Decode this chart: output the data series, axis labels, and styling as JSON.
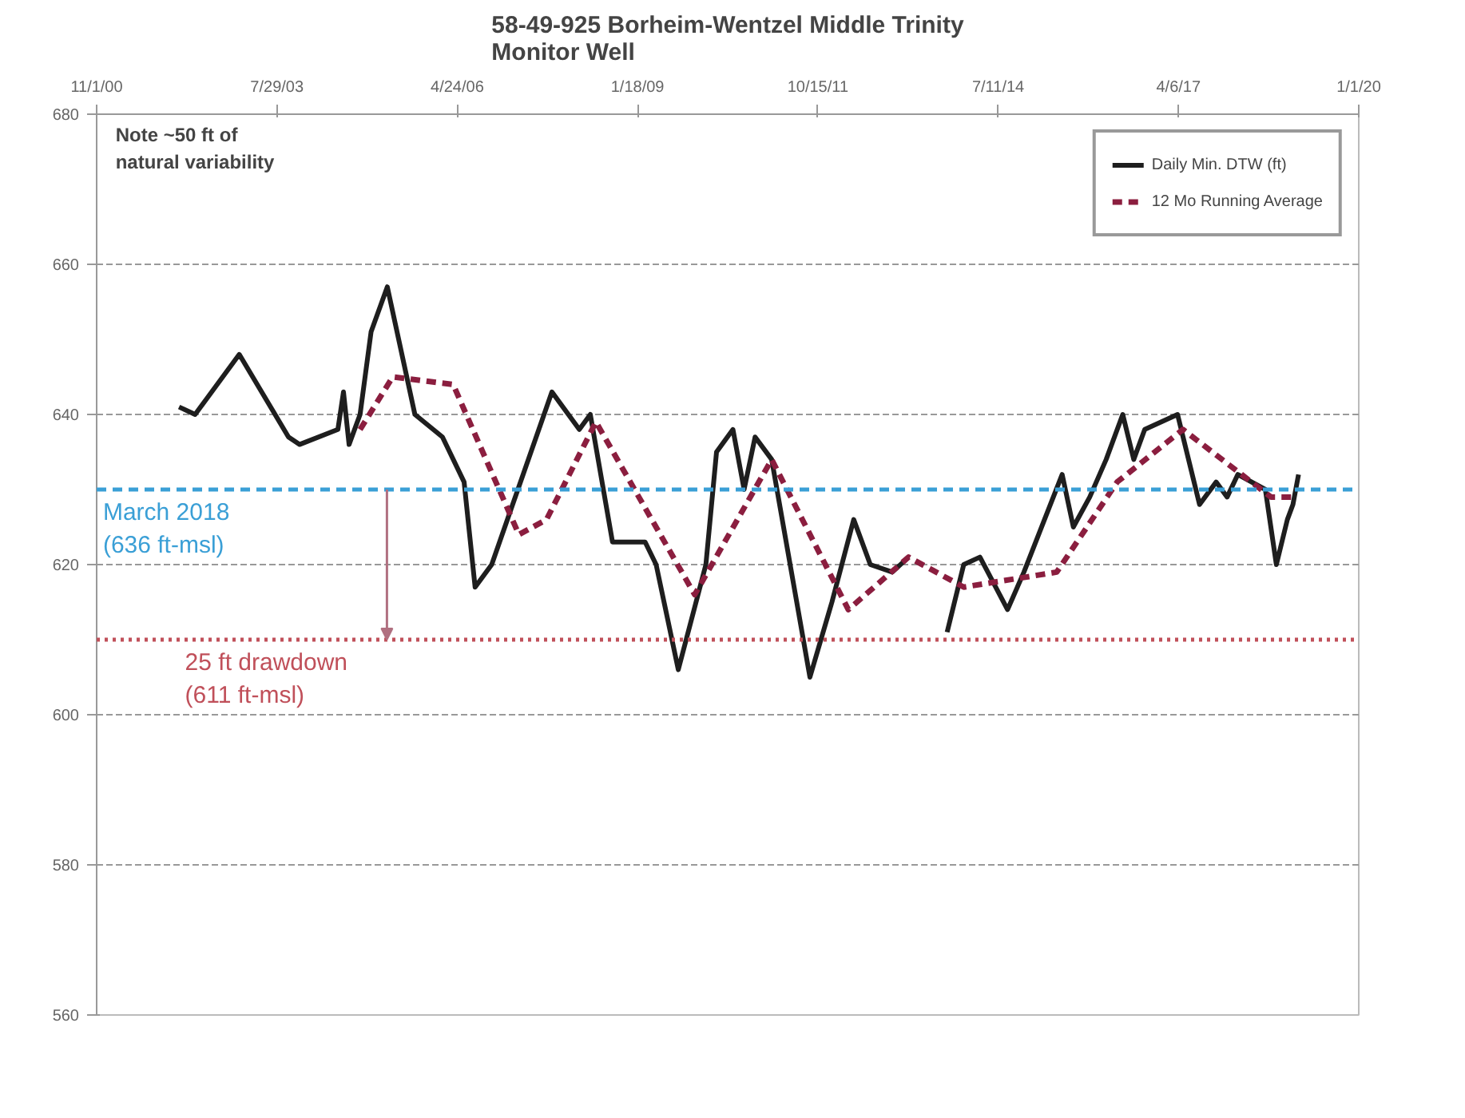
{
  "chart_data": {
    "type": "line",
    "title": "58-49-925 Borheim-Wentzel Middle Trinity\nMonitor Well",
    "xlim": [
      "2000-11-01",
      "2020-01-01"
    ],
    "xticks": [
      {
        "value": "2000-11-01",
        "label": "11/1/00"
      },
      {
        "value": "2003-07-29",
        "label": "7/29/03"
      },
      {
        "value": "2006-04-24",
        "label": "4/24/06"
      },
      {
        "value": "2009-01-18",
        "label": "1/18/09"
      },
      {
        "value": "2011-10-15",
        "label": "10/15/11"
      },
      {
        "value": "2014-07-11",
        "label": "7/11/14"
      },
      {
        "value": "2017-04-06",
        "label": "4/6/17"
      },
      {
        "value": "2020-01-01",
        "label": "1/1/20"
      }
    ],
    "ylim": [
      560,
      680
    ],
    "yticks": [
      560,
      580,
      600,
      620,
      640,
      660,
      680
    ],
    "grid": "y",
    "legend": "top right",
    "series": [
      {
        "name": "Daily Min. DTW (ft)",
        "color": "#1e1e1e",
        "line_style": "solid",
        "x": [
          "2002-02",
          "2002-05",
          "2003-01",
          "2003-10",
          "2003-12",
          "2004-07",
          "2004-08",
          "2004-09",
          "2004-11",
          "2005-01",
          "2005-04",
          "2005-09",
          "2006-02",
          "2006-06",
          "2006-08",
          "2006-11",
          "2007-10",
          "2008-03",
          "2008-05",
          "2008-09",
          "2009-03",
          "2009-05",
          "2009-09",
          "2010-02",
          "2010-04",
          "2010-07",
          "2010-09",
          "2010-11",
          "2011-02",
          "2011-09",
          "2012-01",
          "2012-05",
          "2012-08",
          "2012-12",
          "2013-03",
          "2013-06",
          "2013-10",
          "2014-01",
          "2014-04",
          "2014-09",
          "2014-12",
          "2015-07",
          "2015-09",
          "2015-12",
          "2016-03",
          "2016-06",
          "2016-08",
          "2016-10",
          "2017-04",
          "2017-08",
          "2017-11",
          "2018-01",
          "2018-03",
          "2018-08",
          "2018-10",
          "2018-12",
          "2019-01",
          "2019-02"
        ],
        "values": [
          641,
          640,
          648,
          637,
          636,
          638,
          643,
          636,
          640,
          651,
          657,
          640,
          637,
          631,
          617,
          620,
          643,
          638,
          640,
          623,
          623,
          620,
          606,
          620,
          635,
          638,
          630,
          637,
          634,
          605,
          615,
          626,
          620,
          619,
          621,
          null,
          611,
          620,
          621,
          614,
          619,
          632,
          625,
          629,
          634,
          640,
          634,
          638,
          640,
          628,
          631,
          629,
          632,
          630,
          620,
          626,
          628,
          632
        ]
      },
      {
        "name": "12 Mo Running Average",
        "color": "#8b1e3f",
        "line_style": "dashed",
        "x": [
          "2004-11",
          "2005-05",
          "2006-04",
          "2007-04",
          "2007-09",
          "2008-06",
          "2009-12",
          "2011-02",
          "2012-04",
          "2013-03",
          "2014-01",
          "2015-06",
          "2016-05",
          "2017-05",
          "2018-09",
          "2019-01"
        ],
        "values": [
          638,
          645,
          644,
          624,
          626,
          639,
          616,
          634,
          614,
          621,
          617,
          619,
          631,
          638,
          629,
          629
        ]
      }
    ],
    "ref_lines": [
      {
        "axis": "y",
        "value": 630,
        "label": "March 2018\n(636 ft-msl)",
        "color": "#3a9fd6",
        "line_style": "dashed"
      },
      {
        "axis": "y",
        "value": 610,
        "label": "25 ft drawdown\n(611 ft-msl)",
        "color": "#c0505a",
        "line_style": "dotted"
      }
    ],
    "annotations": [
      "Note ~50 ft of\nnatural variability"
    ]
  }
}
